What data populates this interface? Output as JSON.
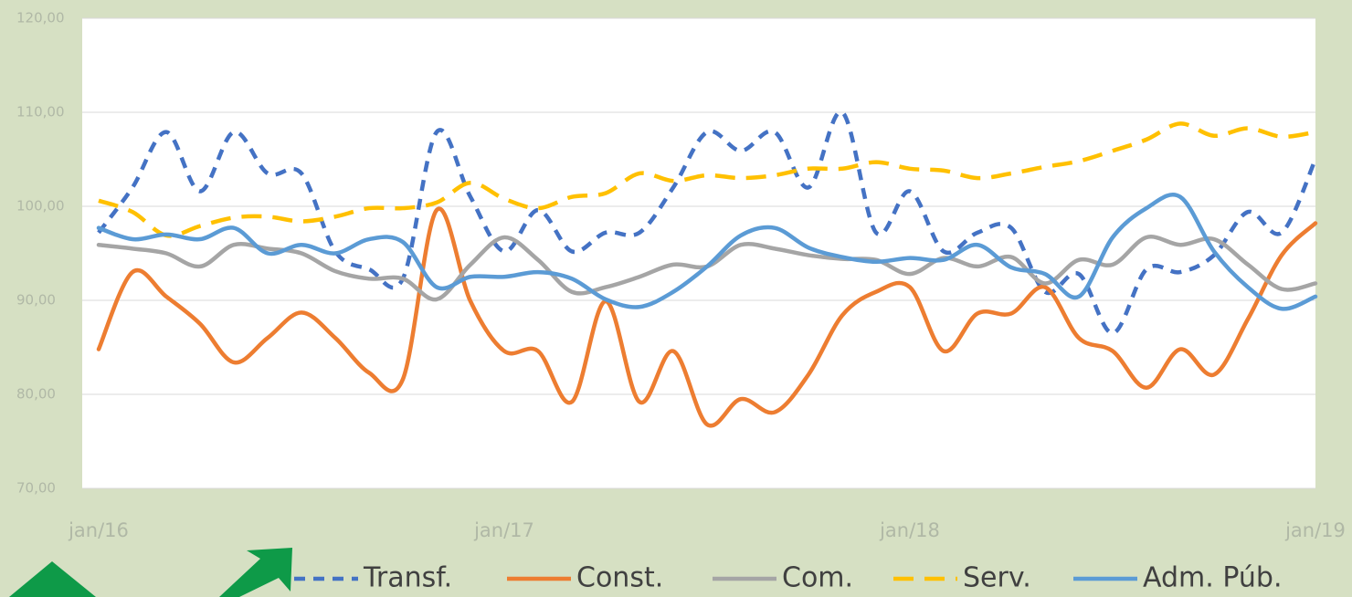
{
  "chart_data": {
    "type": "line",
    "categories": [
      "jan/16",
      null,
      null,
      null,
      null,
      null,
      null,
      null,
      null,
      null,
      null,
      null,
      "jan/17",
      null,
      null,
      null,
      null,
      null,
      null,
      null,
      null,
      null,
      null,
      null,
      "jan/18",
      null,
      null,
      null,
      null,
      null,
      null,
      null,
      null,
      null,
      null,
      null,
      "jan/19"
    ],
    "series": [
      {
        "name": "Transf.",
        "color": "#4472c4",
        "dash": "12 9",
        "values": [
          97.2,
          102,
          107.9,
          101.6,
          107.9,
          103.5,
          103.5,
          95.2,
          93.3,
          92.3,
          107.9,
          101,
          95.2,
          99.6,
          95.2,
          97.2,
          97.2,
          102,
          107.9,
          105.9,
          107.9,
          102,
          110,
          97.2,
          101.6,
          95.2,
          97.2,
          97.7,
          90.9,
          92.8,
          86.5,
          93.3,
          93,
          94.8,
          99.4,
          97.2,
          105
        ]
      },
      {
        "name": "Const.",
        "color": "#ed7d31",
        "values": [
          84.8,
          93,
          90.4,
          87.5,
          83.4,
          86,
          88.7,
          86,
          82.3,
          81.6,
          99.6,
          89.9,
          84.6,
          84.6,
          79.2,
          89.9,
          79.2,
          84.6,
          76.8,
          79.5,
          78.1,
          82.1,
          88.4,
          90.9,
          91.4,
          84.6,
          88.6,
          88.6,
          91.4,
          86,
          84.6,
          80.7,
          84.8,
          82.1,
          88,
          94.8,
          98.2
        ]
      },
      {
        "name": "Com.",
        "color": "#a5a5a5",
        "values": [
          95.9,
          95.5,
          95,
          93.6,
          95.9,
          95.5,
          95,
          93.1,
          92.3,
          92.3,
          90.1,
          93.8,
          96.7,
          94.3,
          90.9,
          91.4,
          92.5,
          93.8,
          93.6,
          95.9,
          95.5,
          94.8,
          94.4,
          94.3,
          92.8,
          94.5,
          93.6,
          94.6,
          91.8,
          94.3,
          93.8,
          96.7,
          95.9,
          96.5,
          93.8,
          91.2,
          91.8
        ]
      },
      {
        "name": "Serv.",
        "color": "#ffc000",
        "dash": "22 12",
        "values": [
          100.6,
          99.4,
          96.9,
          97.9,
          98.8,
          98.9,
          98.4,
          98.9,
          99.8,
          99.8,
          100.4,
          102.5,
          100.8,
          99.8,
          101,
          101.4,
          103.5,
          102.7,
          103.3,
          103,
          103.3,
          104,
          104,
          104.7,
          104,
          103.8,
          103,
          103.5,
          104.2,
          104.8,
          105.9,
          107.1,
          108.8,
          107.5,
          108.3,
          107.4,
          107.9
        ]
      },
      {
        "name": "Adm. Púb.",
        "color": "#5b9bd5",
        "values": [
          97.7,
          96.5,
          97,
          96.5,
          97.7,
          95,
          95.9,
          95,
          96.5,
          96.2,
          91.4,
          92.5,
          92.5,
          93,
          92.3,
          90.1,
          89.3,
          90.9,
          93.6,
          96.9,
          97.7,
          95.6,
          94.6,
          94.1,
          94.5,
          94.3,
          95.9,
          93.5,
          92.8,
          90.4,
          96.7,
          99.8,
          101,
          95.2,
          91.4,
          89.1,
          90.4
        ]
      }
    ],
    "ylim": [
      70,
      120
    ],
    "yticks": [
      {
        "value": 70,
        "label": "70,00"
      },
      {
        "value": 80,
        "label": "80,00"
      },
      {
        "value": 90,
        "label": "90,00"
      },
      {
        "value": 100,
        "label": "100,00"
      },
      {
        "value": 110,
        "label": "110,00"
      },
      {
        "value": 120,
        "label": "120,00"
      }
    ],
    "grid": true,
    "smooth": true,
    "legend": "bottom"
  }
}
